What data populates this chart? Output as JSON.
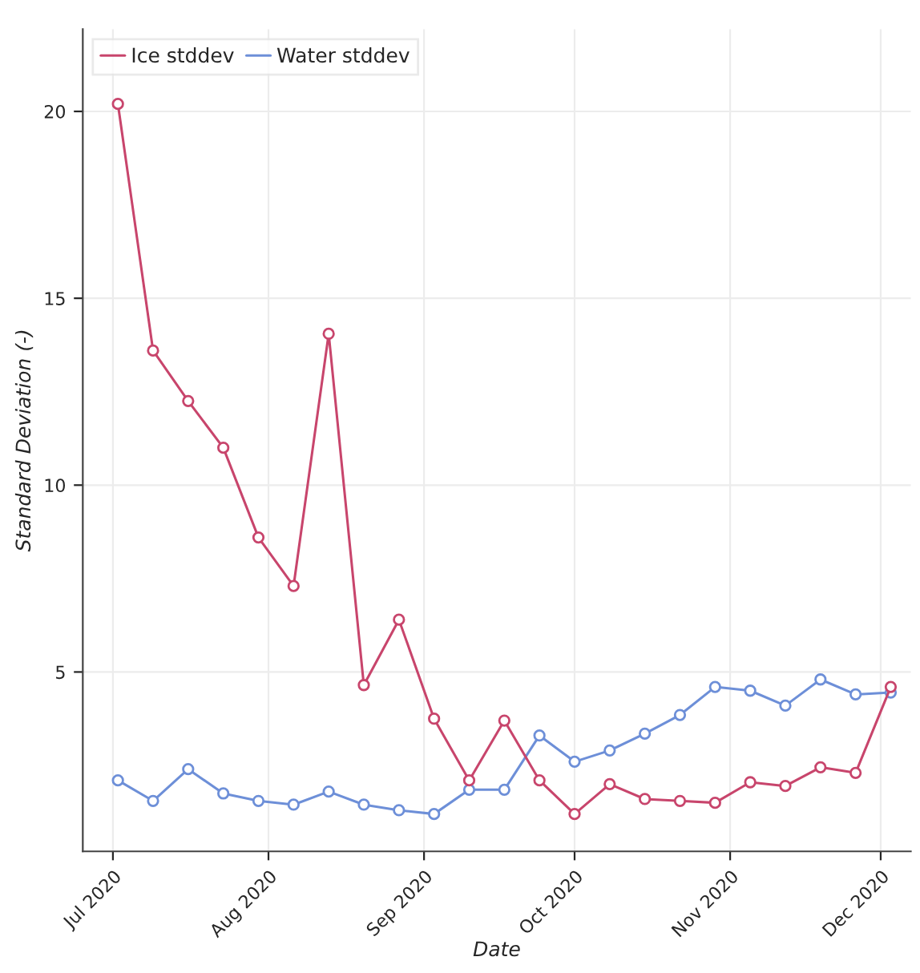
{
  "chart_data": {
    "type": "line",
    "xlabel": "Date",
    "ylabel": "Standard Deviation (-)",
    "x": [
      "2020-07-02",
      "2020-07-09",
      "2020-07-16",
      "2020-07-23",
      "2020-07-30",
      "2020-08-06",
      "2020-08-13",
      "2020-08-20",
      "2020-08-27",
      "2020-09-03",
      "2020-09-10",
      "2020-09-17",
      "2020-09-24",
      "2020-10-01",
      "2020-10-08",
      "2020-10-15",
      "2020-10-22",
      "2020-10-29",
      "2020-11-05",
      "2020-11-12",
      "2020-11-19",
      "2020-11-26",
      "2020-12-03"
    ],
    "series": [
      {
        "name": "Ice stddev",
        "color": "#c8456c",
        "values": [
          20.2,
          13.6,
          12.25,
          11.0,
          8.6,
          7.3,
          14.05,
          4.65,
          6.4,
          3.75,
          2.1,
          3.7,
          2.1,
          1.2,
          2.0,
          1.6,
          1.55,
          1.5,
          2.05,
          1.95,
          2.45,
          2.3,
          4.6
        ]
      },
      {
        "name": "Water stddev",
        "color": "#6d8fd8",
        "values": [
          2.1,
          1.55,
          2.4,
          1.75,
          1.55,
          1.45,
          1.8,
          1.45,
          1.3,
          1.2,
          1.85,
          1.85,
          3.3,
          2.6,
          2.9,
          3.35,
          3.85,
          4.6,
          4.5,
          4.1,
          4.8,
          4.4,
          4.45
        ]
      }
    ],
    "xlim": [
      "2020-06-25",
      "2020-12-07"
    ],
    "ylim": [
      0.2,
      22.2
    ],
    "xticks": [
      {
        "value": "2020-07-01",
        "label": "Jul 2020"
      },
      {
        "value": "2020-08-01",
        "label": "Aug 2020"
      },
      {
        "value": "2020-09-01",
        "label": "Sep 2020"
      },
      {
        "value": "2020-10-01",
        "label": "Oct 2020"
      },
      {
        "value": "2020-11-01",
        "label": "Nov 2020"
      },
      {
        "value": "2020-12-01",
        "label": "Dec 2020"
      }
    ],
    "yticks": [
      5,
      10,
      15,
      20
    ],
    "grid": true,
    "legend": "top left",
    "marker": "circle",
    "line_style": "solid"
  }
}
